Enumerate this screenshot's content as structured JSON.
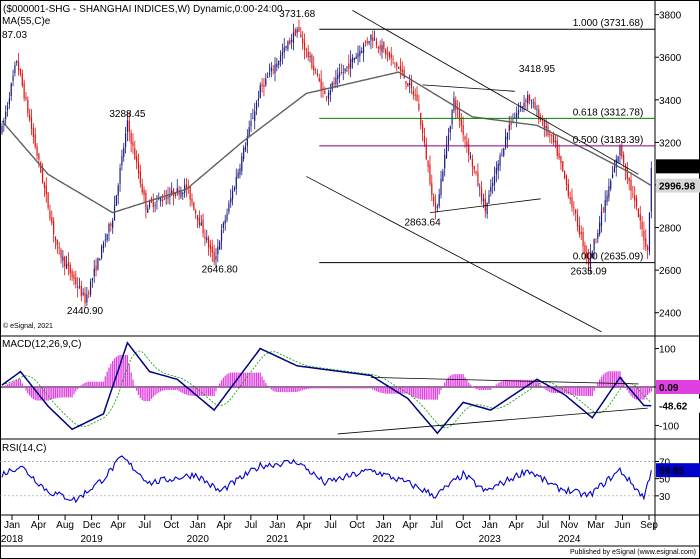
{
  "header": {
    "title": "($000001-SHG - SHANGHAI INDICES,W) Dynamic,0:00-24:00",
    "ma_value": "87.03",
    "ma_label": "MA(55,C)e",
    "copyright": "© eSignal, 2021",
    "footer": "Published by eSignal (www.esignal.com)"
  },
  "colors": {
    "up": "#1a1a80",
    "down": "#e01010",
    "ma": "#606060",
    "fib_top": "#000000",
    "fib_618": "#008000",
    "fib_500": "#800080",
    "macd_line": "#000080",
    "macd_signal": "#00a000",
    "macd_hist": "#e040e0",
    "rsi": "#0000cc",
    "trend": "#000000"
  },
  "chart_data": [
    {
      "type": "candlestick",
      "name": "price",
      "ylim": [
        2300,
        3850
      ],
      "y_ticks": [
        2400,
        2600,
        2800,
        3000,
        3200,
        3400,
        3600,
        3800
      ],
      "x_labels": [
        {
          "month": "Jan",
          "year": "2018"
        },
        {
          "month": "Apr"
        },
        {
          "month": "Aug"
        },
        {
          "month": "Dec",
          "year": "2019"
        },
        {
          "month": "Apr"
        },
        {
          "month": "Jul"
        },
        {
          "month": "Oct"
        },
        {
          "month": "Jan",
          "year": "2020"
        },
        {
          "month": "Apr"
        },
        {
          "month": "Jul"
        },
        {
          "month": "Jan",
          "year": "2021"
        },
        {
          "month": "Apr"
        },
        {
          "month": "Jul"
        },
        {
          "month": "Oct"
        },
        {
          "month": "Jan",
          "year": "2022"
        },
        {
          "month": "Apr"
        },
        {
          "month": "Jul"
        },
        {
          "month": "Oct"
        },
        {
          "month": "Jan",
          "year": "2023"
        },
        {
          "month": "Apr"
        },
        {
          "month": "Jul"
        },
        {
          "month": "Nov",
          "year": "2024"
        },
        {
          "month": "Mar"
        },
        {
          "month": "Jun"
        },
        {
          "month": "Sep"
        }
      ],
      "pivots": [
        {
          "t": 0,
          "v": 3260
        },
        {
          "t": 8,
          "v": 3587
        },
        {
          "t": 30,
          "v": 2700
        },
        {
          "t": 45,
          "v": 2460
        },
        {
          "t": 60,
          "v": 2850
        },
        {
          "t": 68,
          "v": 3288.45
        },
        {
          "t": 78,
          "v": 2900
        },
        {
          "t": 100,
          "v": 2990
        },
        {
          "t": 115,
          "v": 2646.8
        },
        {
          "t": 140,
          "v": 3450
        },
        {
          "t": 160,
          "v": 3731.68
        },
        {
          "t": 175,
          "v": 3420
        },
        {
          "t": 200,
          "v": 3700
        },
        {
          "t": 215,
          "v": 3550
        },
        {
          "t": 225,
          "v": 3400
        },
        {
          "t": 235,
          "v": 2863.64
        },
        {
          "t": 245,
          "v": 3400
        },
        {
          "t": 262,
          "v": 2885
        },
        {
          "t": 275,
          "v": 3280
        },
        {
          "t": 285,
          "v": 3418.95
        },
        {
          "t": 300,
          "v": 3180
        },
        {
          "t": 318,
          "v": 2635.09
        },
        {
          "t": 335,
          "v": 3174
        },
        {
          "t": 350,
          "v": 2690
        },
        {
          "t": 352,
          "v": 3087.53
        }
      ],
      "ma_pivots": [
        {
          "t": 0,
          "v": 3300
        },
        {
          "t": 25,
          "v": 3050
        },
        {
          "t": 60,
          "v": 2870
        },
        {
          "t": 100,
          "v": 2980
        },
        {
          "t": 130,
          "v": 3200
        },
        {
          "t": 165,
          "v": 3430
        },
        {
          "t": 215,
          "v": 3530
        },
        {
          "t": 255,
          "v": 3320
        },
        {
          "t": 290,
          "v": 3280
        },
        {
          "t": 318,
          "v": 3160
        },
        {
          "t": 340,
          "v": 3060
        },
        {
          "t": 352,
          "v": 2996.98
        }
      ],
      "last_price": "3087.53",
      "last_ma": "2996.98",
      "fibs": [
        {
          "label": "1.000 (3731.68)",
          "value": 3731.68,
          "color": "#000000"
        },
        {
          "label": "0.618 (3312.78)",
          "value": 3312.78,
          "color": "#008000"
        },
        {
          "label": "0.500 (3183.39)",
          "value": 3183.39,
          "color": "#800080"
        },
        {
          "label": "0.000 (2635.09)",
          "value": 2635.09,
          "color": "#000000"
        }
      ],
      "annotations": [
        {
          "label": "3731.68",
          "t": 160,
          "v": 3790
        },
        {
          "label": "3288.45",
          "t": 68,
          "v": 3320
        },
        {
          "label": "2646.80",
          "t": 118,
          "v": 2590
        },
        {
          "label": "2440.90",
          "t": 45,
          "v": 2395
        },
        {
          "label": "3418.95",
          "t": 290,
          "v": 3530
        },
        {
          "label": "2863.64",
          "t": 228,
          "v": 2810
        },
        {
          "label": "2635.09",
          "t": 318,
          "v": 2580
        }
      ],
      "trendlines": [
        {
          "t1": 190,
          "v1": 3820,
          "t2": 345,
          "v2": 3050
        },
        {
          "t1": 165,
          "v1": 3040,
          "t2": 325,
          "v2": 2310
        },
        {
          "t1": 228,
          "v1": 3470,
          "t2": 278,
          "v2": 3440
        },
        {
          "t1": 232,
          "v1": 2870,
          "t2": 292,
          "v2": 2935
        }
      ]
    },
    {
      "type": "macd",
      "name": "MACD(12,26,9,C)",
      "ylim": [
        -130,
        130
      ],
      "y_ticks": [
        100,
        0,
        -100
      ],
      "macd_pivots": [
        {
          "t": 0,
          "v": 5
        },
        {
          "t": 10,
          "v": 40
        },
        {
          "t": 25,
          "v": -50
        },
        {
          "t": 38,
          "v": -110
        },
        {
          "t": 55,
          "v": -70
        },
        {
          "t": 68,
          "v": 115
        },
        {
          "t": 80,
          "v": 40
        },
        {
          "t": 95,
          "v": 20
        },
        {
          "t": 115,
          "v": -60
        },
        {
          "t": 140,
          "v": 100
        },
        {
          "t": 160,
          "v": 55
        },
        {
          "t": 200,
          "v": 30
        },
        {
          "t": 220,
          "v": -30
        },
        {
          "t": 236,
          "v": -120
        },
        {
          "t": 250,
          "v": -40
        },
        {
          "t": 265,
          "v": -60
        },
        {
          "t": 290,
          "v": 20
        },
        {
          "t": 305,
          "v": -20
        },
        {
          "t": 320,
          "v": -80
        },
        {
          "t": 335,
          "v": 25
        },
        {
          "t": 348,
          "v": -48
        },
        {
          "t": 352,
          "v": -48.62
        }
      ],
      "macd_value": "-48.62",
      "signal_value": "0.09",
      "trendlines": [
        {
          "t1": 200,
          "v1": 25,
          "t2": 345,
          "v2": 8
        },
        {
          "t1": 182,
          "v1": -122,
          "t2": 350,
          "v2": -55
        }
      ]
    },
    {
      "type": "line",
      "name": "RSI(14,C)",
      "ylim": [
        10,
        95
      ],
      "y_ticks": [
        70,
        50,
        30
      ],
      "rsi_pivots": [
        {
          "t": 0,
          "v": 55
        },
        {
          "t": 10,
          "v": 65
        },
        {
          "t": 25,
          "v": 35
        },
        {
          "t": 40,
          "v": 25
        },
        {
          "t": 55,
          "v": 50
        },
        {
          "t": 65,
          "v": 75
        },
        {
          "t": 80,
          "v": 45
        },
        {
          "t": 105,
          "v": 55
        },
        {
          "t": 118,
          "v": 35
        },
        {
          "t": 140,
          "v": 65
        },
        {
          "t": 160,
          "v": 70
        },
        {
          "t": 175,
          "v": 45
        },
        {
          "t": 200,
          "v": 60
        },
        {
          "t": 220,
          "v": 45
        },
        {
          "t": 235,
          "v": 30
        },
        {
          "t": 250,
          "v": 55
        },
        {
          "t": 262,
          "v": 35
        },
        {
          "t": 285,
          "v": 60
        },
        {
          "t": 300,
          "v": 40
        },
        {
          "t": 318,
          "v": 30
        },
        {
          "t": 335,
          "v": 60
        },
        {
          "t": 348,
          "v": 28
        },
        {
          "t": 352,
          "v": 59.85
        }
      ],
      "rsi_value": "59.85"
    }
  ]
}
